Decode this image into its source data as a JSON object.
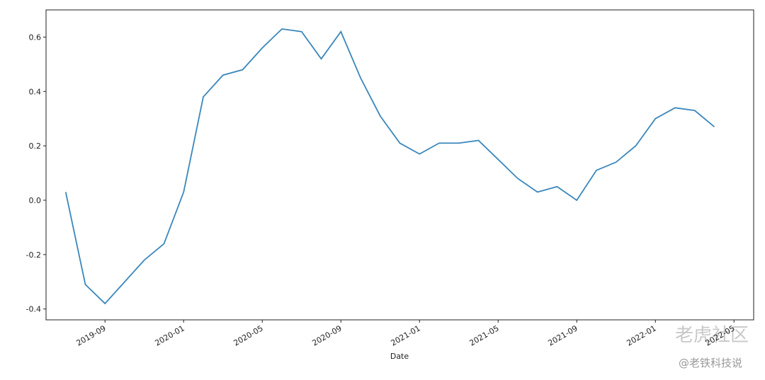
{
  "chart_data": {
    "type": "line",
    "x_label": "Date",
    "x": [
      "2019-07",
      "2019-08",
      "2019-09",
      "2019-10",
      "2019-11",
      "2019-12",
      "2020-01",
      "2020-02",
      "2020-03",
      "2020-04",
      "2020-05",
      "2020-06",
      "2020-07",
      "2020-08",
      "2020-09",
      "2020-10",
      "2020-11",
      "2020-12",
      "2021-01",
      "2021-02",
      "2021-03",
      "2021-04",
      "2021-05",
      "2021-06",
      "2021-07",
      "2021-08",
      "2021-09",
      "2021-10",
      "2021-11",
      "2021-12",
      "2022-01",
      "2022-02",
      "2022-03",
      "2022-04"
    ],
    "series": [
      {
        "color": "#3a87bc",
        "values": [
          0.03,
          -0.31,
          -0.38,
          -0.3,
          -0.22,
          -0.16,
          0.03,
          0.38,
          0.46,
          0.48,
          0.56,
          0.63,
          0.62,
          0.52,
          0.62,
          0.45,
          0.31,
          0.21,
          0.17,
          0.21,
          0.21,
          0.22,
          0.15,
          0.08,
          0.03,
          0.05,
          0.0,
          0.11,
          0.14,
          0.2,
          0.3,
          0.34,
          0.33,
          0.27
        ]
      }
    ],
    "xlim": [
      "2019-06",
      "2022-06"
    ],
    "xticks": [
      "2019-09",
      "2020-01",
      "2020-05",
      "2020-09",
      "2021-01",
      "2021-05",
      "2021-09",
      "2022-01",
      "2022-05"
    ],
    "ylim": [
      -0.44,
      0.7
    ],
    "yticks": [
      -0.4,
      -0.2,
      {
        "value": 0,
        "label": "0.0"
      },
      0.2,
      0.4,
      0.6
    ],
    "watermark": [
      "老虎社区",
      "@老铁科技说"
    ]
  }
}
